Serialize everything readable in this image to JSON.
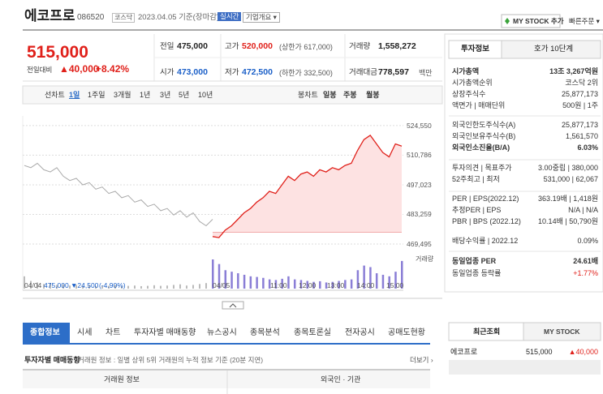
{
  "header": {
    "name": "에코프로",
    "code": "086520",
    "market": "코스닥",
    "date": "2023.04.05 기준(장마감)",
    "realtime": "실시간",
    "overview": "기업개요 ▾",
    "mystock": "MY STOCK 추가",
    "quick": "빠른주문 ▾"
  },
  "price": {
    "current": "515,000",
    "change_label": "전일대비",
    "change": "▲40,000",
    "rate": "+8.42%"
  },
  "summary": [
    {
      "label": "전일",
      "value": "475,000",
      "color": "#222"
    },
    {
      "label": "고가",
      "value": "520,000",
      "note": "(상한가 617,000)",
      "color": "#e0201a"
    },
    {
      "label": "거래량",
      "value": "1,558,272",
      "color": "#222"
    },
    {
      "label": "시가",
      "value": "473,000",
      "color": "#1a5fc8"
    },
    {
      "label": "저가",
      "value": "472,500",
      "note": "(하한가 332,500)",
      "color": "#1a5fc8"
    },
    {
      "label": "거래대금",
      "value": "778,597",
      "note": "백만",
      "color": "#222"
    }
  ],
  "chart_tabs": {
    "line": "선차트",
    "periods": [
      "1일",
      "1주일",
      "3개월",
      "1년",
      "3년",
      "5년",
      "10년"
    ],
    "candle": "봉차트",
    "candle_periods": [
      "일봉",
      "주봉",
      "월봉"
    ]
  },
  "chart": {
    "ylim": [
      465000,
      529000
    ],
    "yticks": [
      {
        "value": 524550,
        "label": "524,550"
      },
      {
        "value": 510786,
        "label": "510,786"
      },
      {
        "value": 497023,
        "label": "497,023"
      },
      {
        "value": 483259,
        "label": "483,259"
      },
      {
        "value": 469495,
        "label": "469,495"
      }
    ],
    "baseline": 475000,
    "xlabels": [
      "04/05",
      "11:00",
      "12:00",
      "13:00",
      "14:00",
      "15:00"
    ],
    "prev_values": [
      506000,
      505000,
      507000,
      504000,
      503000,
      505000,
      501000,
      499000,
      500000,
      497000,
      498000,
      495000,
      496000,
      493000,
      494000,
      491000,
      492000,
      489000,
      490000,
      487000,
      488000,
      485000,
      486000,
      483000,
      485000,
      482000,
      484000,
      480000,
      478000,
      481000
    ],
    "values": [
      473000,
      472500,
      476000,
      478000,
      481000,
      484000,
      486000,
      489000,
      491000,
      494000,
      493000,
      497000,
      501000,
      499000,
      502000,
      503000,
      501000,
      504000,
      503000,
      505000,
      504000,
      506000,
      507000,
      513000,
      518000,
      520000,
      516000,
      512000,
      510000,
      516000,
      515000
    ],
    "prev_volumes": [
      40,
      25,
      20,
      15,
      18,
      12,
      14,
      10,
      12,
      9,
      11,
      8,
      10,
      9,
      12,
      8,
      9,
      10,
      8,
      9,
      11,
      9,
      10,
      12,
      14,
      10,
      12,
      15,
      18,
      22
    ],
    "volumes": [
      95,
      80,
      60,
      55,
      50,
      45,
      40,
      38,
      35,
      30,
      28,
      32,
      40,
      30,
      28,
      25,
      22,
      24,
      20,
      22,
      25,
      28,
      30,
      60,
      75,
      70,
      50,
      45,
      40,
      55,
      90
    ],
    "volume_label": "거래량",
    "prev_date": "04/04",
    "prev_close": "475,000",
    "prev_change": "▼24,500",
    "prev_rate": "(-4.90%)"
  },
  "side_tabs": [
    "투자정보",
    "호가 10단계"
  ],
  "invest_info": [
    {
      "label": "시가총액",
      "value": "13조 3,267억원",
      "bold": true
    },
    {
      "label": "시가총액순위",
      "value": "코스닥 2위"
    },
    {
      "label": "상장주식수",
      "value": "25,877,173"
    },
    {
      "label": "액면가 | 매매단위",
      "value": "500원 | 1주"
    },
    {
      "label": "외국인한도주식수(A)",
      "value": "25,877,173"
    },
    {
      "label": "외국인보유주식수(B)",
      "value": "1,561,570"
    },
    {
      "label": "외국인소진율(B/A)",
      "value": "6.03%",
      "bold": true
    },
    {
      "label": "투자의견 | 목표주가",
      "value": "3.00중립 | 380,000"
    },
    {
      "label": "52주최고 | 최저",
      "value": "531,000 | 62,067"
    },
    {
      "label": "PER | EPS(2022.12)",
      "value": "363.19배 | 1,418원"
    },
    {
      "label": "추정PER | EPS",
      "value": "N/A | N/A"
    },
    {
      "label": "PBR | BPS (2022.12)",
      "value": "10.14배 | 50,790원"
    },
    {
      "label": "배당수익률 | 2022.12",
      "value": "0.09%"
    },
    {
      "label": "동일업종 PER",
      "value": "24.61배",
      "bold": true
    },
    {
      "label": "동일업종 등락률",
      "value": "+1.77%",
      "color": "#e0201a"
    }
  ],
  "main_tabs": [
    "종합정보",
    "시세",
    "차트",
    "투자자별 매매동향",
    "뉴스공시",
    "종목분석",
    "종목토론실",
    "전자공시",
    "공매도현황"
  ],
  "investor": {
    "title": "투자자별 매매동향",
    "desc": "거래원 정보 : 일별 상위 5위 거래원의 누적 정보 기준 (20분 지연)",
    "more": "더보기 ›",
    "headers": [
      "거래원 정보",
      "외국인 · 기관"
    ]
  },
  "recent_tabs": [
    "최근조회",
    "MY STOCK"
  ],
  "recent": [
    {
      "name": "에코프로",
      "price": "515,000",
      "change": "▲40,000"
    }
  ]
}
